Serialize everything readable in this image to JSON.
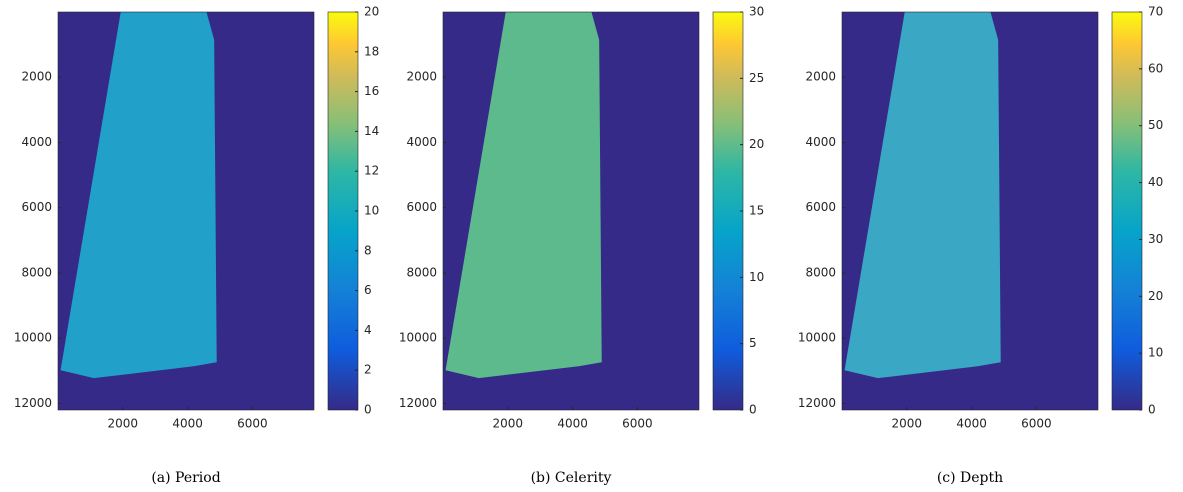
{
  "chart_data": [
    {
      "type": "heatmap",
      "caption": "(a) Period",
      "xlim": [
        0,
        7900
      ],
      "xticks": [
        2000,
        4000,
        6000
      ],
      "ylim": [
        0,
        12200
      ],
      "yticks": [
        2000,
        4000,
        6000,
        8000,
        10000,
        12000
      ],
      "clim": [
        0,
        20
      ],
      "cticks": [
        0,
        2,
        4,
        6,
        8,
        10,
        12,
        14,
        16,
        18,
        20
      ]
    },
    {
      "type": "heatmap",
      "caption": "(b) Celerity",
      "xlim": [
        0,
        7900
      ],
      "xticks": [
        2000,
        4000,
        6000
      ],
      "ylim": [
        0,
        12200
      ],
      "yticks": [
        2000,
        4000,
        6000,
        8000,
        10000,
        12000
      ],
      "clim": [
        0,
        30
      ],
      "cticks": [
        0,
        5,
        10,
        15,
        20,
        25,
        30
      ]
    },
    {
      "type": "heatmap",
      "caption": "(c) Depth",
      "xlim": [
        0,
        7900
      ],
      "xticks": [
        2000,
        4000,
        6000
      ],
      "ylim": [
        0,
        12200
      ],
      "yticks": [
        2000,
        4000,
        6000,
        8000,
        10000,
        12000
      ],
      "clim": [
        0,
        70
      ],
      "cticks": [
        0,
        10,
        20,
        30,
        40,
        50,
        60,
        70
      ]
    }
  ]
}
